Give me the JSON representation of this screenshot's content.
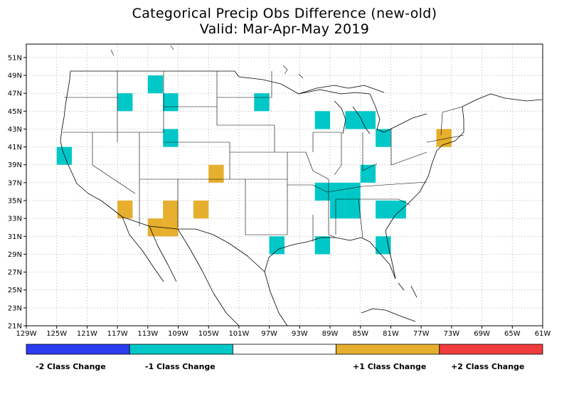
{
  "title": {
    "line1": "Categorical Precip Obs Difference (new-old)",
    "line2": "Valid: Mar-Apr-May 2019"
  },
  "axes": {
    "y_ticks": [
      "51N",
      "49N",
      "47N",
      "45N",
      "43N",
      "41N",
      "39N",
      "37N",
      "35N",
      "33N",
      "31N",
      "29N",
      "27N",
      "25N",
      "23N",
      "21N"
    ],
    "x_ticks": [
      "129W",
      "125W",
      "121W",
      "117W",
      "113W",
      "109W",
      "105W",
      "101W",
      "97W",
      "93W",
      "89W",
      "85W",
      "81W",
      "77W",
      "73W",
      "69W",
      "65W",
      "61W"
    ],
    "lon_range": [
      -129,
      -61
    ],
    "lat_range": [
      21,
      52.5
    ],
    "grid": true
  },
  "colors": {
    "minus2": "#2a3cf0",
    "minus1": "#00c8c8",
    "zero": "#ffffff",
    "plus1": "#e6af2d",
    "plus2": "#f03c3c"
  },
  "legend": {
    "entries": [
      {
        "label": "-2 Class Change",
        "color": "#2a3cf0"
      },
      {
        "label": "-1 Class Change",
        "color": "#00c8c8"
      },
      {
        "label": "",
        "color": "#ffffff"
      },
      {
        "label": "+1 Class Change",
        "color": "#e6af2d"
      },
      {
        "label": "+2 Class Change",
        "color": "#f03c3c"
      }
    ]
  },
  "chart_data": {
    "type": "heatmap",
    "cell_size_deg": 2,
    "cells": [
      {
        "lon": -124,
        "lat": 40,
        "value": -1
      },
      {
        "lon": -116,
        "lat": 46,
        "value": -1
      },
      {
        "lon": -112,
        "lat": 48,
        "value": -1
      },
      {
        "lon": -110,
        "lat": 46,
        "value": -1
      },
      {
        "lon": -110,
        "lat": 42,
        "value": -1
      },
      {
        "lon": -98,
        "lat": 46,
        "value": -1
      },
      {
        "lon": -90,
        "lat": 44,
        "value": -1
      },
      {
        "lon": -86,
        "lat": 44,
        "value": -1
      },
      {
        "lon": -84,
        "lat": 44,
        "value": -1
      },
      {
        "lon": -82,
        "lat": 42,
        "value": -1
      },
      {
        "lon": -84,
        "lat": 38,
        "value": -1
      },
      {
        "lon": -90,
        "lat": 36,
        "value": -1
      },
      {
        "lon": -88,
        "lat": 36,
        "value": -1
      },
      {
        "lon": -86,
        "lat": 36,
        "value": -1
      },
      {
        "lon": -88,
        "lat": 34,
        "value": -1
      },
      {
        "lon": -86,
        "lat": 34,
        "value": -1
      },
      {
        "lon": -82,
        "lat": 34,
        "value": -1
      },
      {
        "lon": -80,
        "lat": 34,
        "value": -1
      },
      {
        "lon": -96,
        "lat": 30,
        "value": -1
      },
      {
        "lon": -90,
        "lat": 30,
        "value": -1
      },
      {
        "lon": -82,
        "lat": 30,
        "value": -1
      },
      {
        "lon": -74,
        "lat": 42,
        "value": 1
      },
      {
        "lon": -104,
        "lat": 38,
        "value": 1
      },
      {
        "lon": -116,
        "lat": 34,
        "value": 1
      },
      {
        "lon": -110,
        "lat": 34,
        "value": 1
      },
      {
        "lon": -106,
        "lat": 34,
        "value": 1
      },
      {
        "lon": -112,
        "lat": 32,
        "value": 1
      },
      {
        "lon": -110,
        "lat": 32,
        "value": 1
      }
    ]
  }
}
